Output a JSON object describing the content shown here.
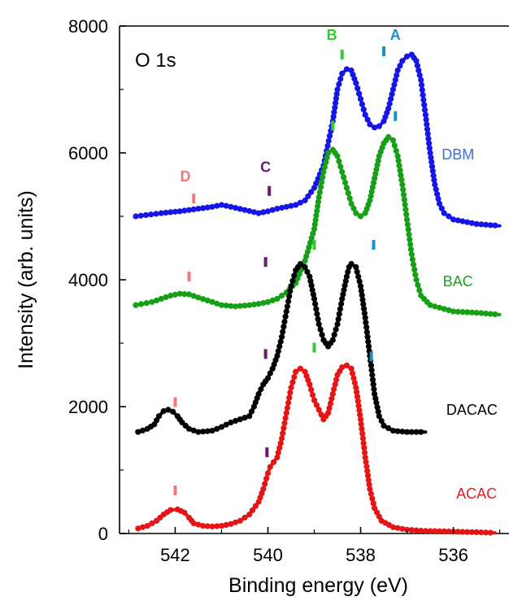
{
  "chart_data": {
    "type": "line",
    "title": "",
    "panel_label": "O 1s",
    "xlabel": "Binding energy (eV)",
    "ylabel": "Intensity (arb. units)",
    "xlim": [
      543.2,
      534.8
    ],
    "ylim": [
      0,
      8000
    ],
    "x_reversed": true,
    "x_ticks": [
      542,
      540,
      538,
      536
    ],
    "y_ticks": [
      0,
      2000,
      4000,
      6000,
      8000
    ],
    "grid": false,
    "legend": "none",
    "series": [
      {
        "name": "DBM",
        "color": "#1515e6",
        "label_color": "#3b6fd6",
        "label_at": [
          535.9,
          5900
        ],
        "points": [
          [
            542.85,
            5000
          ],
          [
            542.3,
            5050
          ],
          [
            541.9,
            5080
          ],
          [
            541.5,
            5120
          ],
          [
            541.2,
            5150
          ],
          [
            541.0,
            5180
          ],
          [
            540.8,
            5150
          ],
          [
            540.5,
            5100
          ],
          [
            540.2,
            5050
          ],
          [
            540.0,
            5080
          ],
          [
            539.8,
            5120
          ],
          [
            539.6,
            5150
          ],
          [
            539.4,
            5180
          ],
          [
            539.2,
            5250
          ],
          [
            539.0,
            5450
          ],
          [
            538.8,
            5800
          ],
          [
            538.6,
            6500
          ],
          [
            538.5,
            7000
          ],
          [
            538.4,
            7250
          ],
          [
            538.3,
            7320
          ],
          [
            538.2,
            7300
          ],
          [
            538.1,
            7100
          ],
          [
            538.0,
            6850
          ],
          [
            537.9,
            6600
          ],
          [
            537.8,
            6450
          ],
          [
            537.7,
            6400
          ],
          [
            537.6,
            6420
          ],
          [
            537.5,
            6500
          ],
          [
            537.4,
            6700
          ],
          [
            537.3,
            7000
          ],
          [
            537.2,
            7300
          ],
          [
            537.1,
            7450
          ],
          [
            537.0,
            7520
          ],
          [
            536.9,
            7550
          ],
          [
            536.8,
            7450
          ],
          [
            536.7,
            7150
          ],
          [
            536.6,
            6600
          ],
          [
            536.5,
            6000
          ],
          [
            536.4,
            5500
          ],
          [
            536.3,
            5200
          ],
          [
            536.2,
            5050
          ],
          [
            536.0,
            4950
          ],
          [
            535.5,
            4880
          ],
          [
            535.0,
            4850
          ]
        ]
      },
      {
        "name": "BAC",
        "color": "#15a015",
        "label_color": "#1ea01e",
        "label_at": [
          535.9,
          3900
        ],
        "points": [
          [
            542.85,
            3600
          ],
          [
            542.5,
            3650
          ],
          [
            542.3,
            3700
          ],
          [
            542.1,
            3750
          ],
          [
            541.9,
            3780
          ],
          [
            541.7,
            3770
          ],
          [
            541.5,
            3720
          ],
          [
            541.2,
            3650
          ],
          [
            541.0,
            3600
          ],
          [
            540.7,
            3580
          ],
          [
            540.4,
            3600
          ],
          [
            540.2,
            3620
          ],
          [
            540.0,
            3650
          ],
          [
            539.8,
            3700
          ],
          [
            539.6,
            3800
          ],
          [
            539.4,
            3950
          ],
          [
            539.2,
            4300
          ],
          [
            539.0,
            4800
          ],
          [
            538.9,
            5300
          ],
          [
            538.8,
            5700
          ],
          [
            538.7,
            6000
          ],
          [
            538.6,
            6050
          ],
          [
            538.5,
            5950
          ],
          [
            538.4,
            5700
          ],
          [
            538.3,
            5450
          ],
          [
            538.2,
            5200
          ],
          [
            538.1,
            5050
          ],
          [
            538.0,
            5000
          ],
          [
            537.9,
            5050
          ],
          [
            537.8,
            5250
          ],
          [
            537.7,
            5600
          ],
          [
            537.6,
            5950
          ],
          [
            537.5,
            6150
          ],
          [
            537.4,
            6250
          ],
          [
            537.3,
            6200
          ],
          [
            537.2,
            5950
          ],
          [
            537.1,
            5500
          ],
          [
            537.0,
            4950
          ],
          [
            536.9,
            4400
          ],
          [
            536.8,
            4000
          ],
          [
            536.7,
            3750
          ],
          [
            536.5,
            3600
          ],
          [
            536.0,
            3500
          ],
          [
            535.5,
            3480
          ],
          [
            535.0,
            3450
          ]
        ]
      },
      {
        "name": "DACAC",
        "color": "#000000",
        "label_color": "#000000",
        "label_at": [
          535.6,
          1870
        ],
        "points": [
          [
            542.8,
            1600
          ],
          [
            542.6,
            1650
          ],
          [
            542.45,
            1720
          ],
          [
            542.35,
            1850
          ],
          [
            542.25,
            1930
          ],
          [
            542.15,
            1950
          ],
          [
            542.05,
            1920
          ],
          [
            541.95,
            1850
          ],
          [
            541.85,
            1750
          ],
          [
            541.7,
            1650
          ],
          [
            541.5,
            1600
          ],
          [
            541.2,
            1620
          ],
          [
            541.0,
            1680
          ],
          [
            540.8,
            1750
          ],
          [
            540.6,
            1800
          ],
          [
            540.4,
            1850
          ],
          [
            540.3,
            2000
          ],
          [
            540.2,
            2200
          ],
          [
            540.1,
            2350
          ],
          [
            540.0,
            2450
          ],
          [
            539.9,
            2600
          ],
          [
            539.8,
            2800
          ],
          [
            539.7,
            3100
          ],
          [
            539.6,
            3500
          ],
          [
            539.5,
            3900
          ],
          [
            539.4,
            4150
          ],
          [
            539.3,
            4250
          ],
          [
            539.2,
            4200
          ],
          [
            539.1,
            4050
          ],
          [
            539.0,
            3700
          ],
          [
            538.9,
            3300
          ],
          [
            538.8,
            3050
          ],
          [
            538.7,
            2950
          ],
          [
            538.6,
            3050
          ],
          [
            538.5,
            3300
          ],
          [
            538.4,
            3700
          ],
          [
            538.3,
            4050
          ],
          [
            538.25,
            4200
          ],
          [
            538.2,
            4250
          ],
          [
            538.1,
            4200
          ],
          [
            538.0,
            3900
          ],
          [
            537.9,
            3400
          ],
          [
            537.8,
            2800
          ],
          [
            537.7,
            2200
          ],
          [
            537.6,
            1850
          ],
          [
            537.5,
            1700
          ],
          [
            537.3,
            1620
          ],
          [
            537.0,
            1600
          ],
          [
            536.6,
            1600
          ]
        ]
      },
      {
        "name": "ACAC",
        "color": "#e61515",
        "label_color": "#e62020",
        "label_at": [
          535.5,
          550
        ],
        "points": [
          [
            542.8,
            80
          ],
          [
            542.6,
            120
          ],
          [
            542.4,
            200
          ],
          [
            542.25,
            300
          ],
          [
            542.1,
            370
          ],
          [
            541.95,
            380
          ],
          [
            541.8,
            330
          ],
          [
            541.7,
            250
          ],
          [
            541.6,
            160
          ],
          [
            541.4,
            120
          ],
          [
            541.2,
            110
          ],
          [
            541.0,
            120
          ],
          [
            540.8,
            150
          ],
          [
            540.6,
            200
          ],
          [
            540.4,
            300
          ],
          [
            540.2,
            500
          ],
          [
            540.1,
            700
          ],
          [
            540.0,
            950
          ],
          [
            539.95,
            1050
          ],
          [
            539.8,
            1200
          ],
          [
            539.7,
            1500
          ],
          [
            539.6,
            1900
          ],
          [
            539.5,
            2300
          ],
          [
            539.4,
            2550
          ],
          [
            539.3,
            2600
          ],
          [
            539.2,
            2550
          ],
          [
            539.1,
            2350
          ],
          [
            539.0,
            2100
          ],
          [
            538.9,
            1950
          ],
          [
            538.8,
            1800
          ],
          [
            538.7,
            1900
          ],
          [
            538.6,
            2200
          ],
          [
            538.5,
            2500
          ],
          [
            538.4,
            2620
          ],
          [
            538.3,
            2650
          ],
          [
            538.2,
            2600
          ],
          [
            538.1,
            2300
          ],
          [
            538.0,
            1800
          ],
          [
            537.9,
            1200
          ],
          [
            537.8,
            700
          ],
          [
            537.7,
            400
          ],
          [
            537.55,
            200
          ],
          [
            537.3,
            100
          ],
          [
            537.0,
            60
          ],
          [
            536.6,
            40
          ],
          [
            536.0,
            30
          ],
          [
            535.5,
            20
          ],
          [
            535.1,
            10
          ]
        ]
      }
    ],
    "peak_markers": [
      {
        "x": 537.5,
        "y": 7600,
        "color": "#1e8fc8"
      },
      {
        "x": 537.25,
        "y": 6580,
        "color": "#1e8fc8"
      },
      {
        "x": 537.72,
        "y": 4550,
        "color": "#1e8fc8"
      },
      {
        "x": 537.77,
        "y": 2790,
        "color": "#1e8fc8"
      },
      {
        "x": 538.4,
        "y": 7550,
        "color": "#33cc33"
      },
      {
        "x": 538.6,
        "y": 6430,
        "color": "#33cc33"
      },
      {
        "x": 539.0,
        "y": 4550,
        "color": "#33cc33"
      },
      {
        "x": 539.0,
        "y": 2930,
        "color": "#33cc33"
      },
      {
        "x": 539.97,
        "y": 5400,
        "color": "#6a1a6a"
      },
      {
        "x": 540.05,
        "y": 4280,
        "color": "#6a1a6a"
      },
      {
        "x": 540.05,
        "y": 2830,
        "color": "#6a1a6a"
      },
      {
        "x": 540.02,
        "y": 1280,
        "color": "#6a1a6a"
      },
      {
        "x": 541.6,
        "y": 5280,
        "color": "#f07a7a"
      },
      {
        "x": 541.7,
        "y": 4050,
        "color": "#f07a7a"
      },
      {
        "x": 542.0,
        "y": 2070,
        "color": "#f07a7a"
      },
      {
        "x": 542.0,
        "y": 680,
        "color": "#f07a7a"
      }
    ],
    "peak_letters": [
      {
        "text": "A",
        "x": 537.25,
        "y": 7780,
        "color": "#1e8fc8"
      },
      {
        "text": "B",
        "x": 538.62,
        "y": 7780,
        "color": "#33cc33"
      },
      {
        "text": "C",
        "x": 540.05,
        "y": 5700,
        "color": "#6a1a6a"
      },
      {
        "text": "D",
        "x": 541.78,
        "y": 5550,
        "color": "#f07a7a"
      }
    ]
  }
}
